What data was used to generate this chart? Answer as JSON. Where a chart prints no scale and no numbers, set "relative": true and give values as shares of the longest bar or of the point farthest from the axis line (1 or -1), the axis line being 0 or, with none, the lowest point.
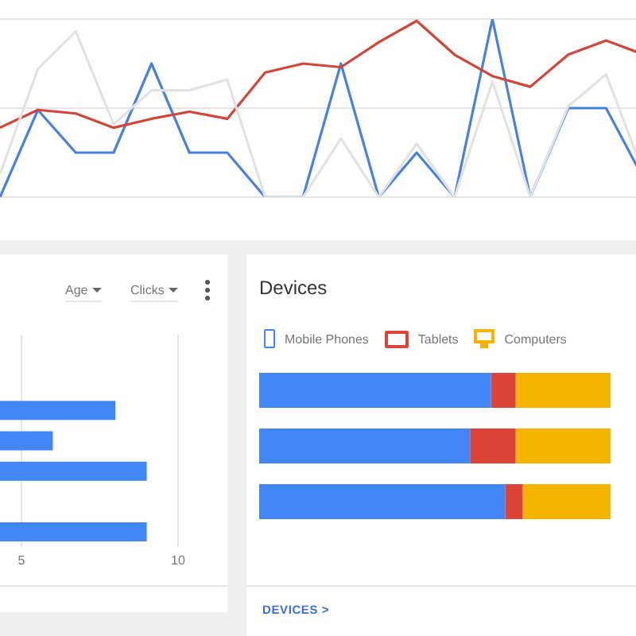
{
  "chart_data": [
    {
      "type": "line",
      "relative": true,
      "grid": "y",
      "marker": "none",
      "ref_lines": [
        {
          "axis": "y",
          "value": 0.5,
          "color": "#e6e6e6"
        }
      ],
      "categories": [
        null,
        null,
        null,
        null,
        null,
        null,
        null,
        null,
        null,
        null,
        null,
        null,
        null,
        null,
        null,
        null,
        null,
        null
      ],
      "series": [
        {
          "color": "#e2e2e2",
          "values": [
            0.13,
            0.72,
            0.93,
            0.41,
            0.6,
            0.6,
            0.66,
            0,
            0,
            0.33,
            0,
            0.3,
            0,
            0.65,
            0,
            0.51,
            0.69,
            0.13
          ]
        },
        {
          "color": "#d2463a",
          "values": [
            0.39,
            0.49,
            0.47,
            0.39,
            0.44,
            0.48,
            0.44,
            0.7,
            0.75,
            0.73,
            0.87,
            0.99,
            0.8,
            0.68,
            0.62,
            0.8,
            0.88,
            0.8
          ]
        },
        {
          "color": "#4a80de",
          "values": [
            0,
            0.49,
            0.25,
            0.25,
            0.75,
            0.25,
            0.25,
            0,
            0,
            0.75,
            0,
            0.25,
            0,
            1,
            0,
            0.5,
            0.5,
            0.1
          ]
        }
      ]
    },
    {
      "type": "bar",
      "orientation": "horizontal",
      "categories": [
        null,
        null,
        null,
        null,
        null,
        null,
        null
      ],
      "values": [
        null,
        null,
        8,
        6,
        9,
        null,
        9
      ],
      "color": "#4285f4",
      "xlim": [
        0,
        10
      ],
      "xticks": [
        5,
        10
      ],
      "grid": "x",
      "tick_labels": "x",
      "annotations": [
        "Age",
        "Clicks"
      ]
    },
    {
      "type": "bar",
      "orientation": "horizontal",
      "stacked": true,
      "relative": true,
      "title": "Devices",
      "legend": "top left",
      "categories": [
        null,
        null,
        null
      ],
      "series": [
        {
          "name": "Mobile Phones",
          "color": "#4285f4",
          "values": [
            0.66,
            0.6,
            0.7
          ]
        },
        {
          "name": "Tablets",
          "color": "#db4437",
          "values": [
            0.07,
            0.13,
            0.05
          ]
        },
        {
          "name": "Computers",
          "color": "#f4b400",
          "values": [
            0.27,
            0.27,
            0.25
          ]
        }
      ],
      "annotations": [
        "DEVICES >"
      ]
    }
  ]
}
